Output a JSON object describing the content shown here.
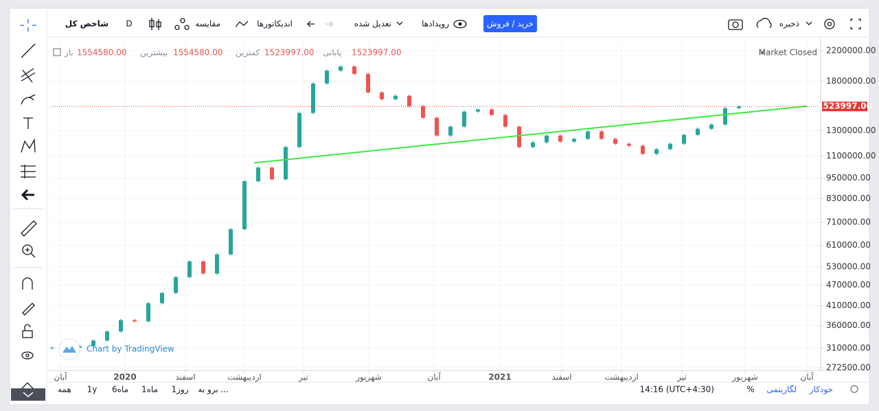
{
  "toolbar": {
    "symbol": "شاخص کل",
    "interval": "D",
    "compare": "مقایسه",
    "indicators": "اندیکاتورها",
    "adjusted": "تعدیل شده",
    "events": "رویدادها",
    "trade": "خرید / فروش",
    "save": "ذخیره"
  },
  "legend": {
    "open_label": "باز",
    "open": "1554580.00",
    "high_label": "بیشترین",
    "high": "1554580.00",
    "low_label": "کمترین",
    "low": "1523997.00",
    "close_label": "پایانی",
    "close": "1523997.00"
  },
  "status": "Market Closed",
  "watermark": "Chart by TradingView",
  "bottom_bar": {
    "ranges": [
      "همه",
      "1y",
      "6ماه",
      "1ماه",
      "1روز"
    ],
    "goto": "برو به ...",
    "time": "14:16 (UTC+4:30)",
    "percent": "%",
    "log": "لگاریتمی",
    "auto": "خودکار"
  },
  "chart_data": {
    "type": "candlestick",
    "values": [
      311000,
      311000,
      314000,
      326000,
      346000,
      373000,
      370000,
      417000,
      446000,
      495000,
      549000,
      507000,
      575000,
      679000,
      931000,
      1019000,
      943000,
      1166000,
      1460000,
      1773000,
      1930000,
      1983000,
      1888000,
      1672000,
      1598000,
      1635000,
      1527000,
      1415000,
      1258000,
      1334000,
      1473000,
      1494000,
      1441000,
      1334000,
      1166000,
      1203000,
      1258000,
      1209000,
      1231000,
      1293000,
      1231000,
      1192000,
      1176000,
      1115000,
      1150000,
      1192000,
      1264000,
      1316000,
      1353000,
      1507000,
      1523997
    ],
    "colors": {
      "up": "#26a69a",
      "down": "#ef5350"
    },
    "log_scale": true,
    "grid": true,
    "xlim": [
      -0.1,
      55.95
    ],
    "xticks": [
      {
        "value": 0.6,
        "label": "آبان"
      },
      {
        "value": 5.3,
        "label": "2020"
      },
      {
        "value": 9.7,
        "label": "اسفند"
      },
      {
        "value": 14,
        "label": "اردیبهشت"
      },
      {
        "value": 18.3,
        "label": "تیر"
      },
      {
        "value": 23.05,
        "label": "شهریور"
      },
      {
        "value": 27.8,
        "label": "آبان"
      },
      {
        "value": 32.6,
        "label": "2021"
      },
      {
        "value": 37.1,
        "label": "اسفند"
      },
      {
        "value": 41.45,
        "label": "اردیبهشت"
      },
      {
        "value": 45.85,
        "label": "تیر"
      },
      {
        "value": 50.45,
        "label": "شهریور"
      },
      {
        "value": 54.95,
        "label": "آبان"
      }
    ],
    "ylim": [
      267600,
      2322000
    ],
    "yticks": [
      {
        "value": 272500,
        "label": "272500.00"
      },
      {
        "value": 310000,
        "label": "310000.00"
      },
      {
        "value": 360000,
        "label": "360000.00"
      },
      {
        "value": 410000,
        "label": "410000.00"
      },
      {
        "value": 470000,
        "label": "470000.00"
      },
      {
        "value": 530000,
        "label": "530000.00"
      },
      {
        "value": 610000,
        "label": "610000.00"
      },
      {
        "value": 710000,
        "label": "710000.00"
      },
      {
        "value": 830000,
        "label": "830000.00"
      },
      {
        "value": 950000,
        "label": "950000.00"
      },
      {
        "value": 1100000,
        "label": "1100000.00"
      },
      {
        "value": 1300000,
        "label": "1300000.00"
      },
      {
        "value": 1800000,
        "label": "1800000.00"
      },
      {
        "value": 2200000,
        "label": "2200000.00"
      }
    ],
    "price_line": {
      "value": 1523997,
      "label": "1523997.00",
      "color": "#e53935"
    },
    "trendline": {
      "x": [
        14.7,
        54.95
      ],
      "y": [
        1051000,
        1527000
      ],
      "color": "#3ee83e"
    }
  }
}
